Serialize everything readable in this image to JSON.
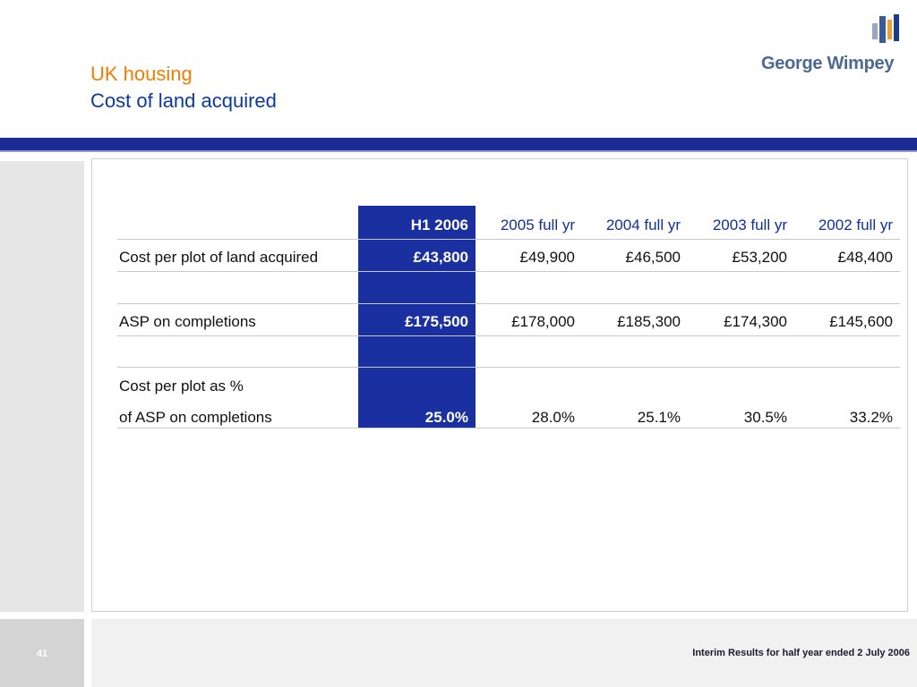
{
  "header": {
    "title_line1": "UK housing",
    "title_line2": "Cost of land acquired",
    "logo_text": "George Wimpey"
  },
  "colors": {
    "accent_orange": "#f07d00",
    "title_blue": "#0a3a9c",
    "band_navy": "#1a2b94",
    "highlight_blue": "#1a2fa0"
  },
  "table": {
    "columns": [
      "H1 2006",
      "2005 full yr",
      "2004 full yr",
      "2003 full yr",
      "2002 full yr"
    ],
    "rows": [
      {
        "label": "Cost per plot of land acquired",
        "values": [
          "£43,800",
          "£49,900",
          "£46,500",
          "£53,200",
          "£48,400"
        ]
      },
      {
        "label": "ASP on completions",
        "values": [
          "£175,500",
          "£178,000",
          "£185,300",
          "£174,300",
          "£145,600"
        ]
      },
      {
        "label_line1": "Cost per plot as %",
        "label_line2": "of ASP on completions",
        "values": [
          "25.0%",
          "28.0%",
          "25.1%",
          "30.5%",
          "33.2%"
        ]
      }
    ]
  },
  "footer": {
    "page_number": "41",
    "text": "Interim Results for half year ended 2 July 2006"
  }
}
